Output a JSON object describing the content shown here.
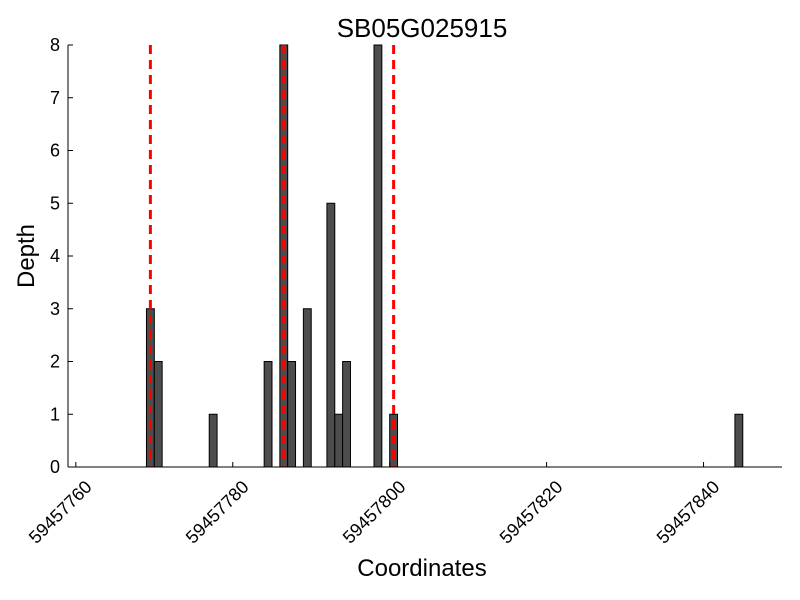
{
  "chart_data": {
    "type": "bar",
    "title": "SB05G025915",
    "xlabel": "Coordinates",
    "ylabel": "Depth",
    "xlim": [
      59457759,
      59457850
    ],
    "ylim": [
      0,
      8
    ],
    "x_ticks": [
      59457760,
      59457780,
      59457800,
      59457820,
      59457840
    ],
    "y_ticks": [
      0,
      1,
      2,
      3,
      4,
      5,
      6,
      7,
      8
    ],
    "grid": false,
    "bar_width": 1,
    "bar_color": "#4d4d4d",
    "bar_edge_color": "#000000",
    "reference_line_color": "#ff0000",
    "reference_lines": [
      59457769.5,
      59457786.5,
      59457800.5
    ],
    "bars": [
      {
        "x": 59457769,
        "y": 3
      },
      {
        "x": 59457770,
        "y": 2
      },
      {
        "x": 59457777,
        "y": 1
      },
      {
        "x": 59457784,
        "y": 2
      },
      {
        "x": 59457786,
        "y": 8
      },
      {
        "x": 59457787,
        "y": 2
      },
      {
        "x": 59457789,
        "y": 3
      },
      {
        "x": 59457792,
        "y": 5
      },
      {
        "x": 59457793,
        "y": 1
      },
      {
        "x": 59457794,
        "y": 2
      },
      {
        "x": 59457798,
        "y": 8
      },
      {
        "x": 59457800,
        "y": 1
      },
      {
        "x": 59457844,
        "y": 1
      }
    ]
  }
}
